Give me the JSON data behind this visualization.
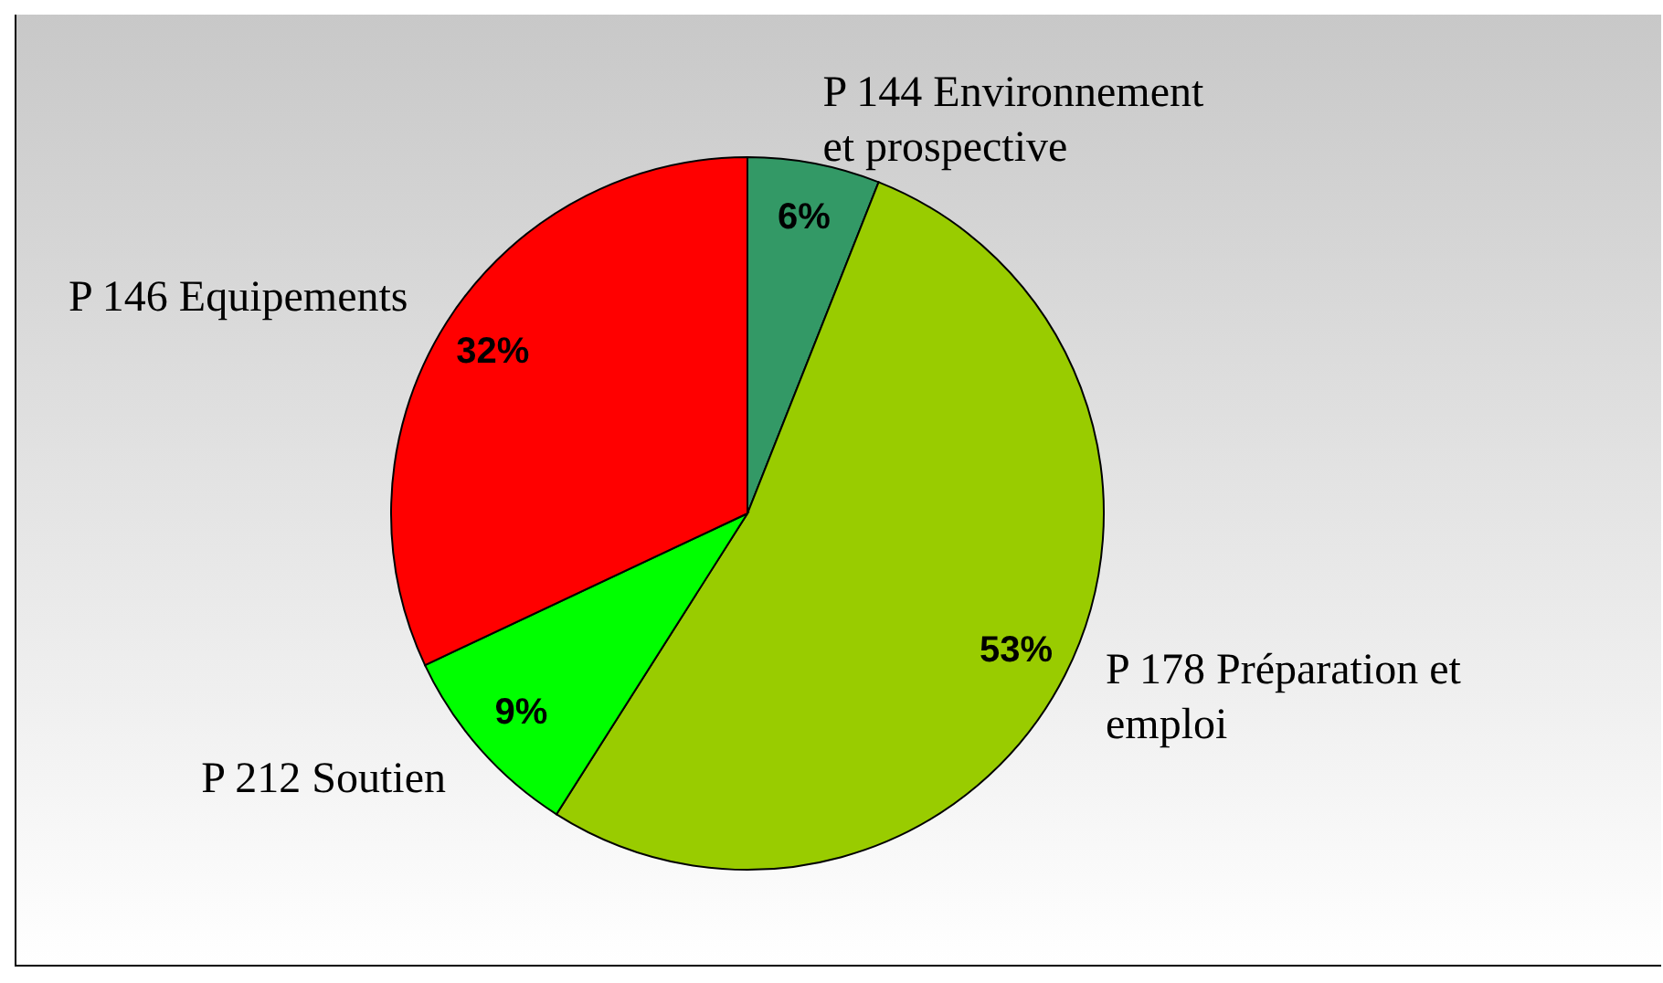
{
  "chart_data": {
    "type": "pie",
    "categories": [
      "P 144 Environnement et prospective",
      "P 178 Préparation et emploi",
      "P 212 Soutien",
      "P 146 Equipements"
    ],
    "values": [
      6,
      53,
      9,
      32
    ],
    "value_labels": [
      "6%",
      "53%",
      "9%",
      "32%"
    ],
    "colors": [
      "#339966",
      "#99cc00",
      "#00ff00",
      "#ff0000"
    ],
    "legend": false
  }
}
